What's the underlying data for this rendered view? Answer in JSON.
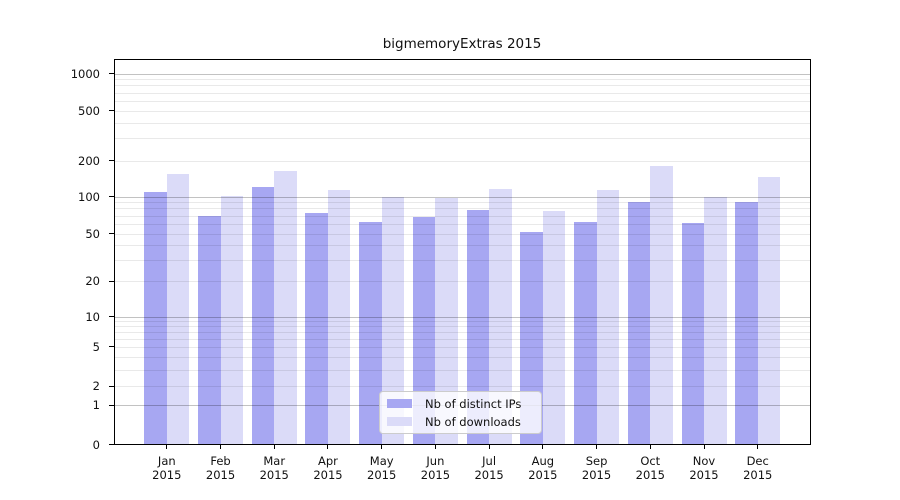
{
  "chart_data": {
    "type": "bar",
    "title": "bigmemoryExtras 2015",
    "categories": [
      "Jan",
      "Feb",
      "Mar",
      "Apr",
      "May",
      "Jun",
      "Jul",
      "Aug",
      "Sep",
      "Oct",
      "Nov",
      "Dec"
    ],
    "category_year": "2015",
    "series": [
      {
        "name": "Nb of distinct IPs",
        "color": "#a7a7f2",
        "values": [
          110,
          70,
          121,
          73,
          62,
          68,
          78,
          51,
          62,
          91,
          61,
          90
        ]
      },
      {
        "name": "Nb of downloads",
        "color": "#dbdbf8",
        "values": [
          155,
          101,
          163,
          113,
          99,
          97,
          115,
          77,
          113,
          180,
          100,
          145
        ]
      }
    ],
    "xlabel": "",
    "ylabel": "",
    "y_axis": {
      "scale": "log1p",
      "tick_values": [
        0,
        1,
        2,
        5,
        10,
        20,
        50,
        100,
        200,
        500,
        1000
      ],
      "major_grid_values": [
        1,
        10,
        100,
        1000
      ],
      "minor_grid_values": [
        2,
        3,
        4,
        5,
        6,
        7,
        8,
        9,
        20,
        30,
        40,
        50,
        60,
        70,
        80,
        90,
        200,
        300,
        400,
        500,
        600,
        700,
        800,
        900
      ],
      "ylim": [
        0,
        1275
      ]
    },
    "grid": "on",
    "legend_position": "bottom-center"
  },
  "colors": {
    "bar_distinct_ips": "#a7a7f2",
    "bar_downloads": "#dbdbf8",
    "grid_major": "rgba(0,0,0,0.24)",
    "grid_minor": "rgba(0,0,0,0.085)",
    "axis": "#000000",
    "text": "#111111",
    "legend_border": "#cccccc"
  }
}
